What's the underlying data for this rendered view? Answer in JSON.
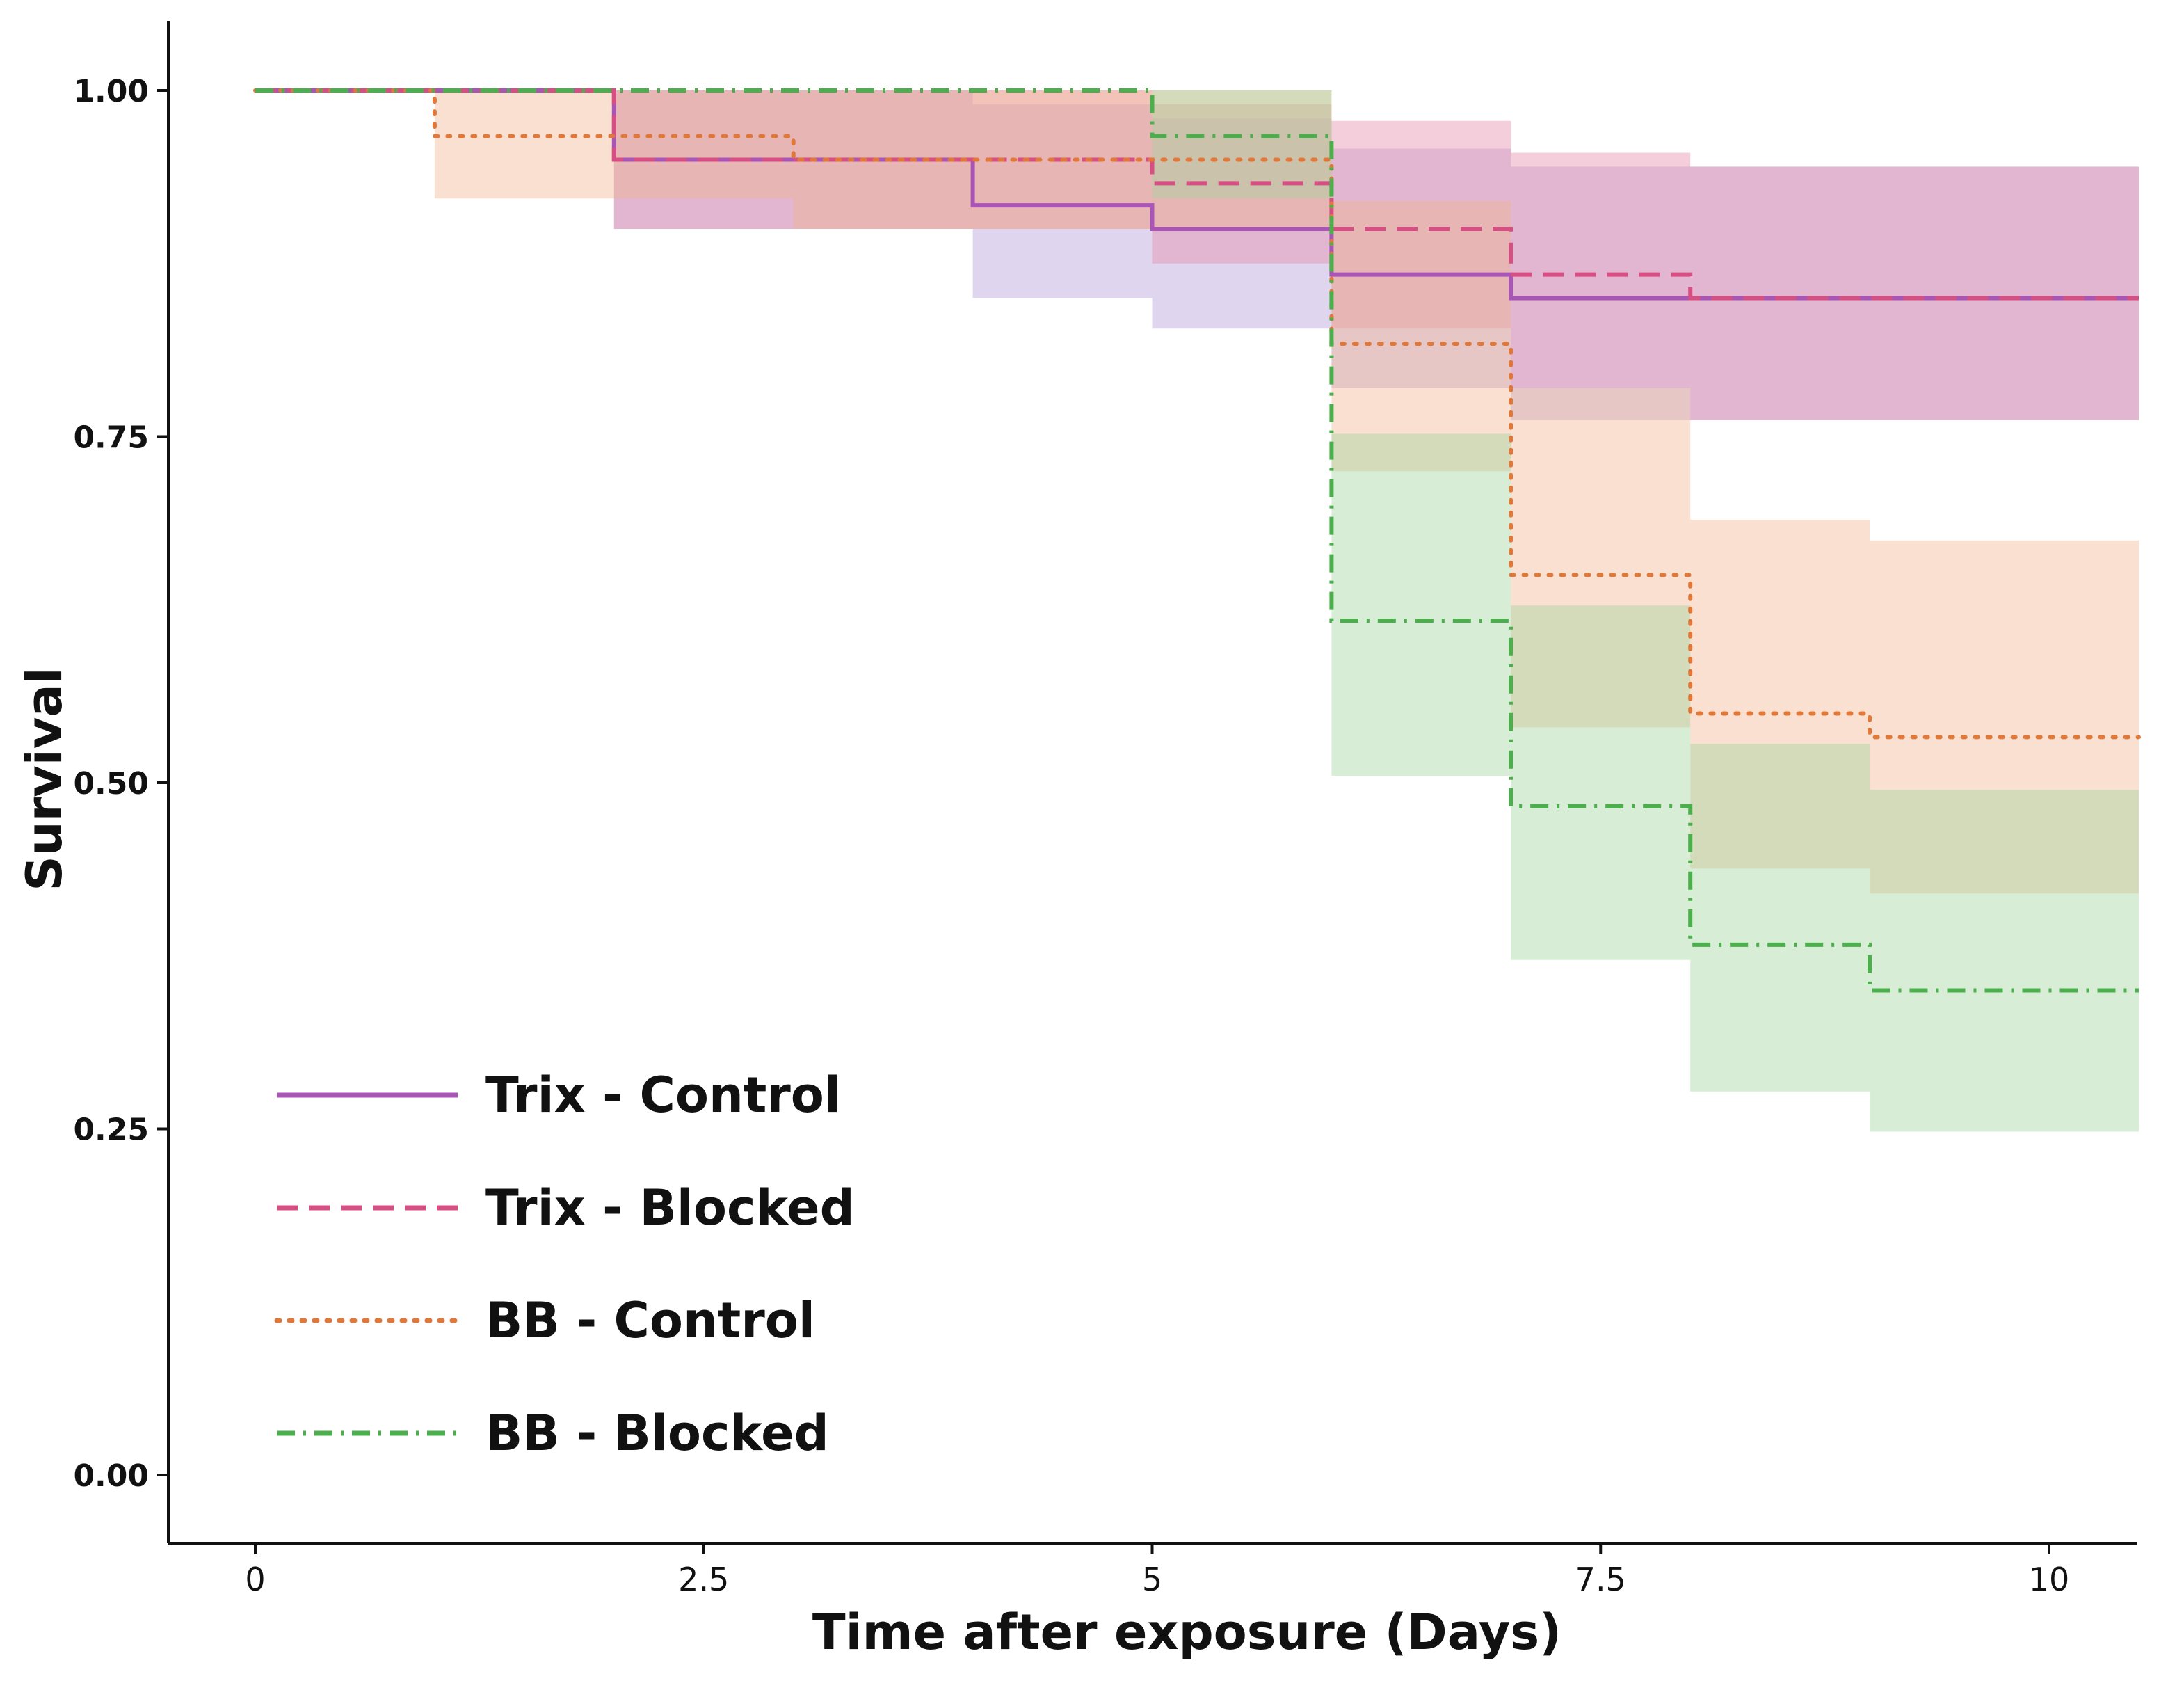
{
  "chart_data": {
    "type": "line",
    "subtype": "kaplan-meier step curves with confidence bands",
    "title": "",
    "xlabel": "Time after exposure (Days)",
    "ylabel": "Survival",
    "xlim": [
      -0.5,
      10.5
    ],
    "ylim": [
      -0.05,
      1.05
    ],
    "x_ticks": [
      0,
      2.5,
      5,
      7.5,
      10
    ],
    "x_tick_labels": [
      "0",
      "2.5",
      "5",
      "7.5",
      "10"
    ],
    "y_ticks": [
      0,
      0.25,
      0.5,
      0.75,
      1.0
    ],
    "y_tick_labels": [
      "0.00",
      "0.25",
      "0.50",
      "0.75",
      "1.00"
    ],
    "grid": false,
    "legend_position": "bottom-left",
    "series": [
      {
        "name": "Trix - Control",
        "color": "#a855b5",
        "band_color": "#b59ad6",
        "line_style": "solid",
        "steps": [
          {
            "x0": 0,
            "x1": 2,
            "y": 1.0,
            "lo": 1.0,
            "hi": 1.0
          },
          {
            "x0": 2,
            "x1": 4,
            "y": 0.95,
            "lo": 0.9,
            "hi": 1.0
          },
          {
            "x0": 4,
            "x1": 5,
            "y": 0.917,
            "lo": 0.85,
            "hi": 0.99
          },
          {
            "x0": 5,
            "x1": 6,
            "y": 0.9,
            "lo": 0.828,
            "hi": 0.98
          },
          {
            "x0": 6,
            "x1": 7,
            "y": 0.867,
            "lo": 0.785,
            "hi": 0.958
          },
          {
            "x0": 7,
            "x1": 10.6,
            "y": 0.85,
            "lo": 0.762,
            "hi": 0.945
          }
        ]
      },
      {
        "name": "Trix - Blocked",
        "color": "#d64f83",
        "band_color": "#e58aa8",
        "line_style": "dashed",
        "steps": [
          {
            "x0": 0,
            "x1": 2,
            "y": 1.0,
            "lo": 1.0,
            "hi": 1.0
          },
          {
            "x0": 2,
            "x1": 5,
            "y": 0.95,
            "lo": 0.9,
            "hi": 1.0
          },
          {
            "x0": 5,
            "x1": 6,
            "y": 0.933,
            "lo": 0.875,
            "hi": 0.99
          },
          {
            "x0": 6,
            "x1": 7,
            "y": 0.9,
            "lo": 0.828,
            "hi": 0.978
          },
          {
            "x0": 7,
            "x1": 8,
            "y": 0.867,
            "lo": 0.785,
            "hi": 0.955
          },
          {
            "x0": 8,
            "x1": 10.6,
            "y": 0.85,
            "lo": 0.762,
            "hi": 0.945
          }
        ]
      },
      {
        "name": "BB - Control",
        "color": "#e0783a",
        "band_color": "#f0b48e",
        "line_style": "dotted",
        "steps": [
          {
            "x0": 0,
            "x1": 1,
            "y": 1.0,
            "lo": 1.0,
            "hi": 1.0
          },
          {
            "x0": 1,
            "x1": 3,
            "y": 0.967,
            "lo": 0.922,
            "hi": 1.0
          },
          {
            "x0": 3,
            "x1": 6,
            "y": 0.95,
            "lo": 0.9,
            "hi": 1.0
          },
          {
            "x0": 6,
            "x1": 7,
            "y": 0.817,
            "lo": 0.725,
            "hi": 0.92
          },
          {
            "x0": 7,
            "x1": 8,
            "y": 0.65,
            "lo": 0.54,
            "hi": 0.785
          },
          {
            "x0": 8,
            "x1": 9,
            "y": 0.55,
            "lo": 0.438,
            "hi": 0.69
          },
          {
            "x0": 9,
            "x1": 10.6,
            "y": 0.533,
            "lo": 0.42,
            "hi": 0.675
          }
        ]
      },
      {
        "name": "BB - Blocked",
        "color": "#4cae4c",
        "band_color": "#9fd49a",
        "line_style": "dashdot",
        "steps": [
          {
            "x0": 0,
            "x1": 5,
            "y": 1.0,
            "lo": 1.0,
            "hi": 1.0
          },
          {
            "x0": 5,
            "x1": 6,
            "y": 0.967,
            "lo": 0.922,
            "hi": 1.0
          },
          {
            "x0": 6,
            "x1": 7,
            "y": 0.617,
            "lo": 0.505,
            "hi": 0.752
          },
          {
            "x0": 7,
            "x1": 8,
            "y": 0.483,
            "lo": 0.372,
            "hi": 0.628
          },
          {
            "x0": 8,
            "x1": 9,
            "y": 0.383,
            "lo": 0.277,
            "hi": 0.528
          },
          {
            "x0": 9,
            "x1": 10.6,
            "y": 0.35,
            "lo": 0.248,
            "hi": 0.495
          }
        ]
      }
    ]
  }
}
